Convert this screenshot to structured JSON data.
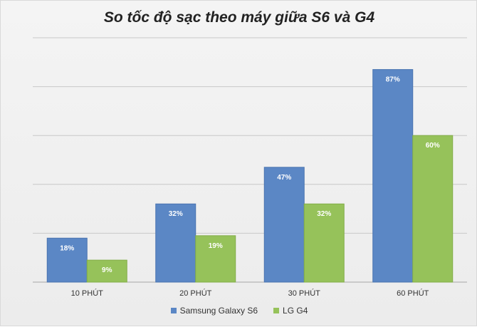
{
  "chart_data": {
    "type": "bar",
    "title": "So tốc độ sạc theo máy giữa S6 và G4",
    "categories": [
      "10 PHÚT",
      "20 PHÚT",
      "30 PHÚT",
      "60 PHÚT"
    ],
    "series": [
      {
        "name": "Samsung Galaxy S6",
        "values": [
          18,
          32,
          47,
          87
        ],
        "labels": [
          "18%",
          "32%",
          "47%",
          "87%"
        ],
        "color": "#5b87c5"
      },
      {
        "name": "LG G4",
        "values": [
          9,
          19,
          32,
          60
        ],
        "labels": [
          "9%",
          "19%",
          "32%",
          "60%"
        ],
        "color": "#96c25a"
      }
    ],
    "ylim": [
      0,
      100
    ],
    "grid": true,
    "legend_position": "bottom"
  }
}
